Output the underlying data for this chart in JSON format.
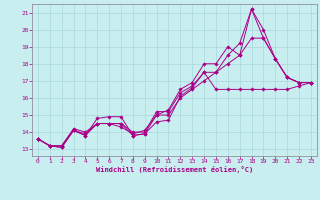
{
  "xlabel": "Windchill (Refroidissement éolien,°C)",
  "bg_color": "#c8eef0",
  "grid_color": "#a8d8dc",
  "line_color": "#aa0088",
  "spine_color": "#9090a0",
  "xlim": [
    -0.5,
    23.5
  ],
  "ylim": [
    12.6,
    21.5
  ],
  "xticks": [
    0,
    1,
    2,
    3,
    4,
    5,
    6,
    7,
    8,
    9,
    10,
    11,
    12,
    13,
    14,
    15,
    16,
    17,
    18,
    19,
    20,
    21,
    22,
    23
  ],
  "yticks": [
    13,
    14,
    15,
    16,
    17,
    18,
    19,
    20,
    21
  ],
  "series": [
    {
      "x": [
        0,
        1,
        2,
        3,
        4,
        5,
        6,
        7,
        8,
        9,
        10,
        11,
        12,
        13,
        14,
        15,
        16,
        17,
        18,
        19,
        20,
        21,
        22,
        23
      ],
      "y": [
        13.6,
        13.2,
        13.1,
        14.1,
        13.8,
        14.8,
        14.9,
        14.9,
        13.8,
        13.9,
        14.6,
        14.7,
        16.1,
        16.6,
        17.5,
        17.5,
        18.5,
        19.2,
        21.2,
        20.0,
        18.3,
        17.2,
        16.9,
        16.9
      ]
    },
    {
      "x": [
        0,
        1,
        2,
        3,
        4,
        5,
        6,
        7,
        8,
        9,
        10,
        11,
        12,
        13,
        14,
        15,
        16,
        17,
        18,
        19,
        20,
        21,
        22,
        23
      ],
      "y": [
        13.6,
        13.2,
        13.2,
        14.2,
        14.0,
        14.5,
        14.5,
        14.3,
        13.9,
        14.1,
        15.0,
        15.3,
        16.5,
        16.9,
        18.0,
        18.0,
        19.0,
        18.5,
        21.2,
        19.5,
        18.3,
        17.2,
        16.9,
        16.9
      ]
    },
    {
      "x": [
        0,
        1,
        2,
        3,
        4,
        5,
        6,
        7,
        8,
        9,
        10,
        11,
        12,
        13,
        14,
        15,
        16,
        17,
        18,
        19,
        20,
        21,
        22,
        23
      ],
      "y": [
        13.6,
        13.2,
        13.1,
        14.1,
        13.8,
        14.5,
        14.5,
        14.5,
        13.8,
        13.9,
        15.0,
        15.0,
        16.0,
        16.5,
        17.0,
        17.5,
        18.0,
        18.5,
        19.5,
        19.5,
        18.3,
        17.2,
        16.9,
        16.9
      ]
    },
    {
      "x": [
        0,
        1,
        2,
        3,
        4,
        5,
        6,
        7,
        8,
        9,
        10,
        11,
        12,
        13,
        14,
        15,
        16,
        17,
        18,
        19,
        20,
        21,
        22,
        23
      ],
      "y": [
        13.6,
        13.2,
        13.2,
        14.1,
        13.9,
        14.5,
        14.5,
        14.5,
        14.0,
        14.0,
        15.2,
        15.2,
        16.3,
        16.7,
        17.5,
        16.5,
        16.5,
        16.5,
        16.5,
        16.5,
        16.5,
        16.5,
        16.7,
        16.9
      ]
    }
  ]
}
